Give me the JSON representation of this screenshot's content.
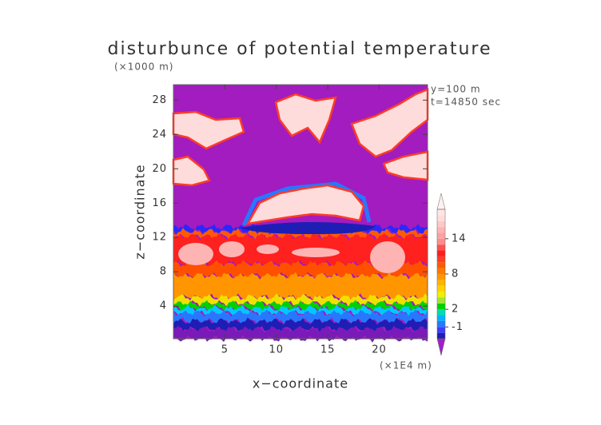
{
  "chart_data": {
    "type": "contour",
    "title": "disturbunce of potential temperature",
    "y_unit": "(×1000 m)",
    "x_unit": "(×1E4 m)",
    "annotations": [
      "y=100 m",
      "t=14850 sec"
    ],
    "xlabel": "x−coordinate",
    "ylabel": "z−coordinate",
    "xlim": [
      0,
      24.7
    ],
    "ylim": [
      0.2,
      29.8
    ],
    "xticks": [
      5,
      10,
      15,
      20
    ],
    "yticks": [
      4,
      8,
      12,
      16,
      20,
      24,
      28
    ],
    "background_color": "#a21cbf",
    "colorbar": {
      "levels": [
        -3,
        -2,
        -1,
        0,
        1,
        2,
        3,
        4,
        5,
        6,
        7,
        8,
        9,
        10,
        11,
        12,
        13,
        14,
        15,
        16,
        17,
        18,
        19
      ],
      "colors": [
        "#1e1eb4",
        "#3c3cff",
        "#2878ff",
        "#00b4ff",
        "#00dcb4",
        "#00d200",
        "#a0e632",
        "#f0f000",
        "#ffd200",
        "#ffb400",
        "#ff9600",
        "#ff7800",
        "#ff5a00",
        "#ff3c28",
        "#ff1e1e",
        "#ff5050",
        "#ff8c8c",
        "#ffa0a0",
        "#ffb4b4",
        "#ffc8c8",
        "#ffdcdc",
        "#ffe6e6"
      ],
      "under_color": "#a020c8",
      "over_color": "#fff0f0",
      "ticks": [
        -1,
        2,
        8,
        14
      ]
    }
  }
}
